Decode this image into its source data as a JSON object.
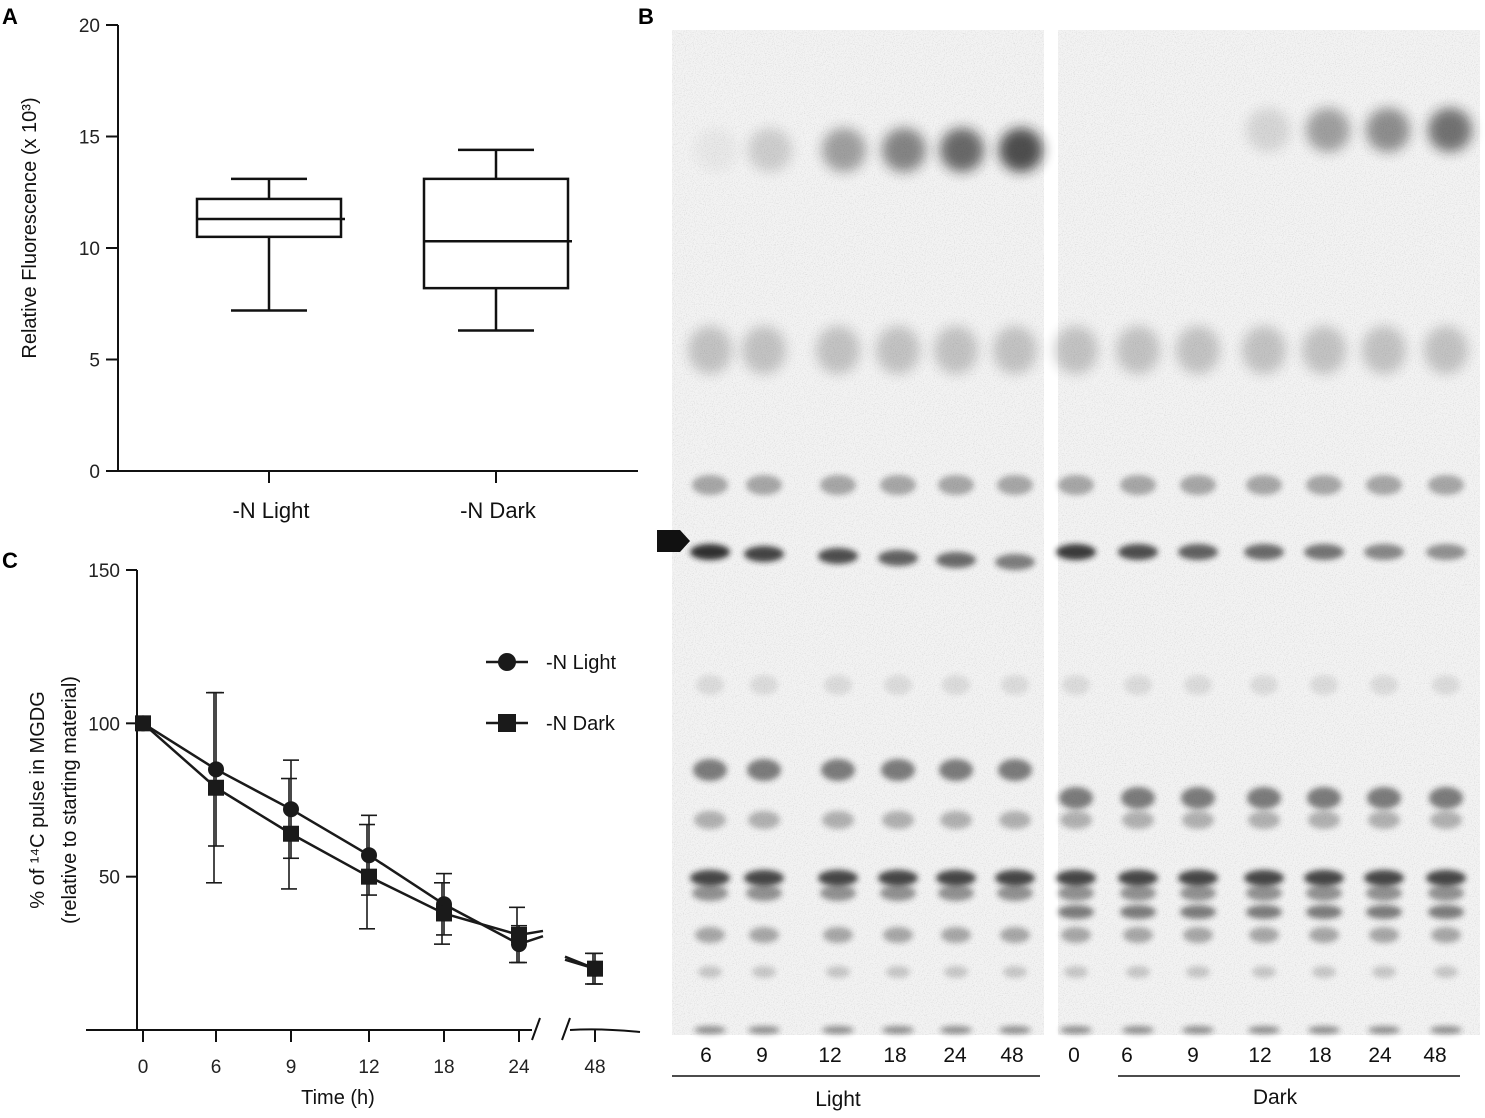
{
  "panel_letters": {
    "a": "A",
    "b": "B",
    "c": "C"
  },
  "chart_data": [
    {
      "panel": "A",
      "type": "box",
      "categories": [
        "-N Light",
        "-N Dark"
      ],
      "boxes": [
        {
          "name": "-N Light",
          "min": 7.2,
          "q1": 10.5,
          "median": 11.3,
          "q3": 12.2,
          "max": 13.1
        },
        {
          "name": "-N Dark",
          "min": 6.3,
          "q1": 8.2,
          "median": 10.3,
          "q3": 13.1,
          "max": 14.4
        }
      ],
      "ylabel": "Relative Fluorescence (x 10³)",
      "ylim": [
        0,
        20
      ],
      "yticks": [
        "0",
        "5",
        "10",
        "15",
        "20"
      ],
      "grid": false
    },
    {
      "panel": "C",
      "type": "line",
      "x": [
        0,
        6,
        9,
        12,
        18,
        24,
        48
      ],
      "x_tick_labels": [
        "0",
        "6",
        "9",
        "12",
        "18",
        "24",
        "48"
      ],
      "x_axis_break": "between 24 and 48",
      "series": [
        {
          "name": "-N Light",
          "marker": "circle",
          "values": [
            100,
            85,
            72,
            57,
            41,
            28,
            20
          ],
          "error": [
            0,
            25,
            16,
            13,
            10,
            6,
            5
          ]
        },
        {
          "name": "-N Dark",
          "marker": "square",
          "values": [
            100,
            79,
            64,
            50,
            38,
            31,
            20
          ],
          "error": [
            0,
            31,
            18,
            17,
            10,
            9,
            5
          ]
        }
      ],
      "xlabel": "Time (h)",
      "ylabel_line1": "% of ¹⁴C pulse in MGDG",
      "ylabel_line2": "(relative to starting material)",
      "ylim": [
        0,
        150
      ],
      "yticks": [
        "50",
        "100",
        "150"
      ],
      "legend_placement": "top-right",
      "grid": false
    }
  ],
  "tlc": {
    "light_lanes": [
      "6",
      "9",
      "12",
      "18",
      "24",
      "48"
    ],
    "dark_lanes": [
      "0",
      "6",
      "9",
      "12",
      "18",
      "24",
      "48"
    ],
    "light_group_label": "Light",
    "dark_group_label": "Dark",
    "light_top_spot_intensity": [
      0.05,
      0.2,
      0.45,
      0.6,
      0.75,
      0.9
    ],
    "dark_top_spot_intensity": [
      0.0,
      0.0,
      0.0,
      0.15,
      0.45,
      0.55,
      0.7
    ],
    "light_marker_band_intensity": [
      1.0,
      0.9,
      0.85,
      0.75,
      0.7,
      0.6
    ],
    "dark_marker_band_intensity": [
      0.95,
      0.85,
      0.75,
      0.7,
      0.65,
      0.55,
      0.5
    ]
  }
}
